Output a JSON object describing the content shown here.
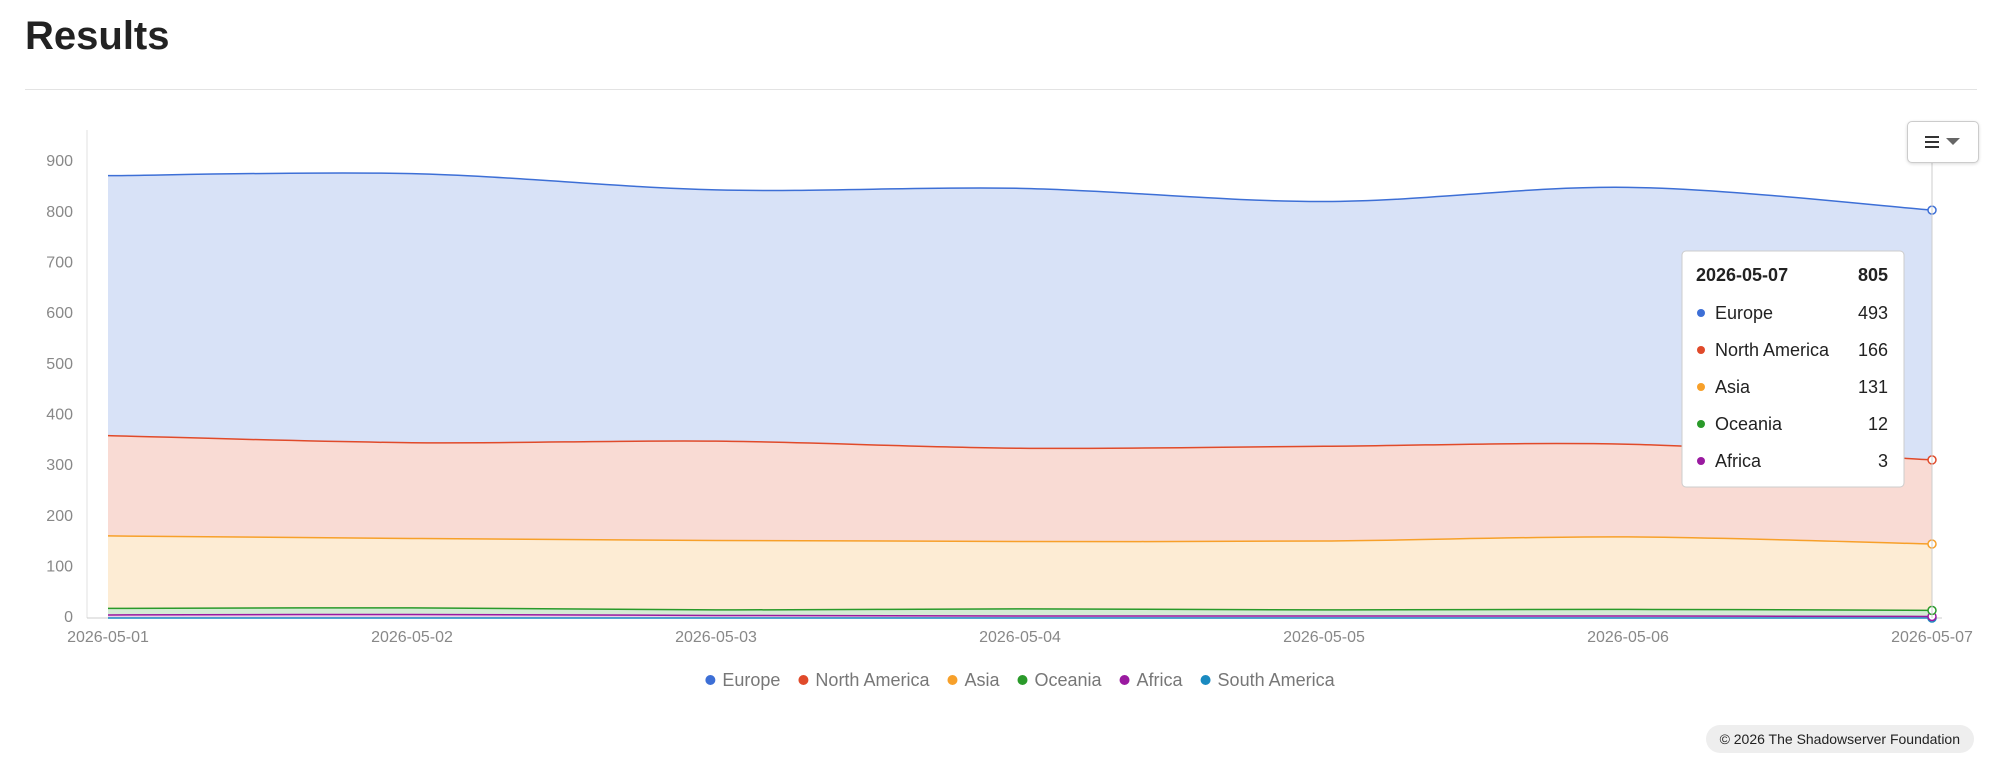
{
  "header": {
    "title": "Results"
  },
  "chart_data": {
    "type": "stacked-area",
    "categories": [
      "2026-05-01",
      "2026-05-02",
      "2026-05-03",
      "2026-05-04",
      "2026-05-05",
      "2026-05-06",
      "2026-05-07"
    ],
    "series": [
      {
        "name": "Europe",
        "color": "#3d6fd6",
        "values": [
          513,
          531,
          496,
          513,
          483,
          507,
          493
        ]
      },
      {
        "name": "North America",
        "color": "#e04a2a",
        "values": [
          198,
          189,
          196,
          184,
          187,
          183,
          166
        ]
      },
      {
        "name": "Asia",
        "color": "#f7a02a",
        "values": [
          143,
          137,
          137,
          133,
          136,
          143,
          131
        ]
      },
      {
        "name": "Oceania",
        "color": "#2a9a2a",
        "values": [
          13,
          13,
          11,
          14,
          12,
          13,
          12
        ]
      },
      {
        "name": "Africa",
        "color": "#9a1aa0",
        "values": [
          6,
          7,
          5,
          4,
          4,
          4,
          3
        ]
      },
      {
        "name": "South America",
        "color": "#1a8ac0",
        "values": [
          0,
          0,
          0,
          0,
          0,
          0,
          0
        ]
      }
    ],
    "ylim": [
      0,
      900
    ],
    "yticks": [
      0,
      100,
      200,
      300,
      400,
      500,
      600,
      700,
      800,
      900
    ],
    "grid": false,
    "legend": "bottom",
    "tooltip_total": 805
  },
  "footer": {
    "text": "© 2026 The Shadowserver Foundation"
  }
}
